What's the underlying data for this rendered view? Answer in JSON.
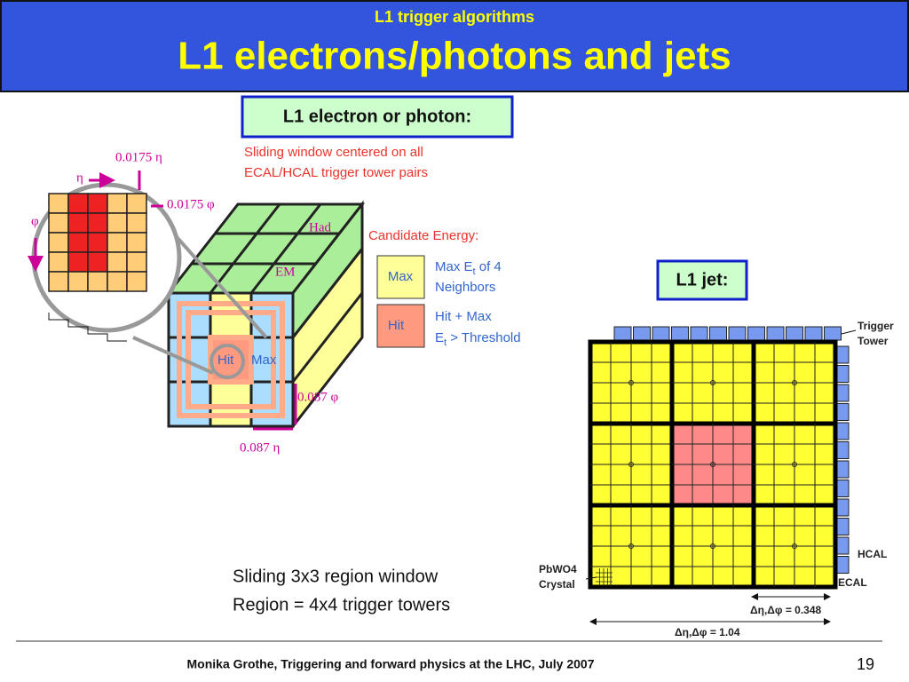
{
  "header": {
    "subtitle": "L1 trigger algorithms",
    "title": "L1 electrons/photons and jets"
  },
  "egamma": {
    "heading": "L1 electron or photon:",
    "description": [
      "Sliding window centered on all",
      "ECAL/HCAL trigger tower pairs"
    ],
    "candidate_heading": "Candidate Energy:",
    "legend": [
      {
        "box": "Max",
        "lines": [
          [
            "Max E",
            "t",
            " of 4"
          ],
          [
            "Neighbors"
          ]
        ]
      },
      {
        "box": "Hit",
        "lines": [
          [
            "Hit + Max"
          ],
          [
            "E",
            "t",
            " > Threshold"
          ]
        ]
      }
    ],
    "cube_labels": {
      "had": "Had",
      "em": "EM",
      "hit": "Hit",
      "max": "Max",
      "tower_phi": "0.087 φ",
      "tower_eta": "0.087 η"
    },
    "crystal_labels": {
      "crystal_eta": "0.0175 η",
      "eta": "η",
      "crystal_phi": "0.0175  φ",
      "phi": "φ"
    }
  },
  "jet": {
    "heading": "L1 jet:",
    "labels": {
      "trigger_tower": [
        "Trigger",
        "Tower"
      ],
      "hcal": "HCAL",
      "ecal": "ECAL",
      "crystal": [
        "PbWO4",
        "Crystal"
      ],
      "region_size": "Δη,Δφ = 0.348",
      "window_size": "Δη,Δφ = 1.04"
    },
    "notes": [
      "Sliding 3x3 region window",
      "Region = 4x4 trigger towers"
    ]
  },
  "footer": {
    "text": "Monika Grothe, Triggering and forward physics at the LHC, July 2007",
    "page": "19"
  }
}
